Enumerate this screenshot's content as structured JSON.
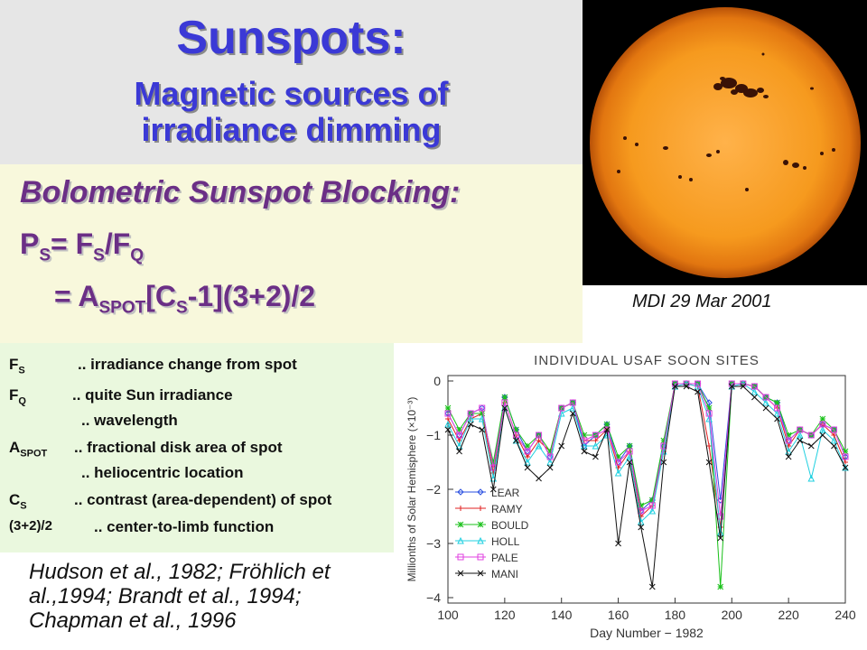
{
  "title": {
    "main": "Sunspots:",
    "sub_line1": "Magnetic sources of",
    "sub_line2": "irradiance dimming"
  },
  "equations": {
    "heading": "Bolometric Sunspot Blocking:",
    "eq1": {
      "p": "P",
      "p_sub": "S",
      "equals": "= ",
      "glyph": "",
      "f": "F",
      "f_sub": "S",
      "slash_f": "/F",
      "f2_sub": "Q"
    },
    "eq2": {
      "equals": "= ",
      "glyph": "",
      "a": "A",
      "a_sub": "SPOT",
      "bracket": "[C",
      "c_sub": "S",
      "middle": "-1](3",
      "glyph2": "",
      "end": "+2)/2"
    }
  },
  "sun_image": {
    "caption": "MDI   29 Mar 2001"
  },
  "definitions": [
    {
      "symbol": "F",
      "symbol_prefix": "",
      "symbol_sub": "S",
      "text": ".. irradiance change from spot"
    },
    {
      "symbol": "F",
      "symbol_prefix": "",
      "symbol_sub": "Q",
      "text": ".. quite Sun irradiance"
    },
    {
      "symbol": "",
      "symbol_prefix": "",
      "symbol_sub": "",
      "text": ".. wavelength"
    },
    {
      "symbol": "A",
      "symbol_prefix": "",
      "symbol_sub": "SPOT",
      "text": ".. fractional disk area of spot"
    },
    {
      "symbol": "",
      "symbol_prefix": "",
      "symbol_sub": "",
      "text": ".. heliocentric location"
    },
    {
      "symbol": "C",
      "symbol_prefix": "",
      "symbol_sub": "S",
      "text": ".. contrast (area-dependent) of spot"
    },
    {
      "symbol": "(3+2)/2",
      "symbol_prefix": "",
      "symbol_sub": "",
      "text": ".. center-to-limb function"
    }
  ],
  "references": "Hudson et al., 1982; Fröhlich et al.,1994; Brandt et al., 1994; Chapman et al., 1996",
  "chart_data": {
    "type": "line",
    "title": "INDIVIDUAL  USAF  SOON  SITES",
    "xlabel": "Day Number − 1982",
    "ylabel": "Millionths of Solar Hemisphere (×10⁻³)",
    "xlim": [
      100,
      240
    ],
    "ylim": [
      -4.1,
      0.1
    ],
    "xticks": [
      "100",
      "120",
      "140",
      "160",
      "180",
      "200",
      "220",
      "240"
    ],
    "yticks": [
      "0",
      "−1",
      "−2",
      "−3",
      "−4"
    ],
    "x": [
      100,
      104,
      108,
      112,
      116,
      120,
      124,
      128,
      132,
      136,
      140,
      144,
      148,
      152,
      156,
      160,
      164,
      168,
      172,
      176,
      180,
      184,
      188,
      192,
      196,
      200,
      204,
      208,
      212,
      216,
      220,
      224,
      228,
      232,
      236,
      240
    ],
    "series": [
      {
        "name": "LEAR",
        "color": "#2a4fe0",
        "marker": "diamond",
        "values": [
          -0.6,
          -1.0,
          -0.6,
          -0.5,
          -1.6,
          -0.3,
          -0.9,
          -1.3,
          -1.0,
          -1.4,
          -0.5,
          -0.4,
          -1.2,
          -1.0,
          -0.8,
          -1.5,
          -1.2,
          -2.4,
          -2.2,
          -1.2,
          -0.05,
          -0.05,
          -0.05,
          -0.4,
          -2.2,
          -0.05,
          -0.05,
          -0.1,
          -0.3,
          -0.4,
          -1.1,
          -0.9,
          -1.0,
          -0.8,
          -0.9,
          -1.4
        ]
      },
      {
        "name": "RAMY",
        "color": "#e02020",
        "marker": "plus",
        "values": [
          -0.7,
          -1.1,
          -0.7,
          -0.6,
          -1.7,
          -0.4,
          -1.0,
          -1.4,
          -1.1,
          -1.3,
          -0.5,
          -0.4,
          -1.1,
          -1.1,
          -0.9,
          -1.6,
          -1.3,
          -2.5,
          -2.3,
          -1.3,
          -0.05,
          -0.05,
          -0.1,
          -1.2,
          -2.7,
          -0.05,
          -0.05,
          -0.1,
          -0.3,
          -0.5,
          -1.2,
          -0.9,
          -1.0,
          -0.8,
          -1.0,
          -1.5
        ]
      },
      {
        "name": "BOULD",
        "color": "#18c018",
        "marker": "star",
        "values": [
          -0.5,
          -0.9,
          -0.6,
          -0.6,
          -1.5,
          -0.3,
          -0.9,
          -1.2,
          -1.0,
          -1.3,
          -0.5,
          -0.4,
          -1.0,
          -1.0,
          -0.8,
          -1.4,
          -1.2,
          -2.3,
          -2.2,
          -1.1,
          -0.05,
          -0.05,
          -0.05,
          -0.5,
          -3.8,
          -0.05,
          -0.05,
          -0.1,
          -0.3,
          -0.4,
          -1.0,
          -0.9,
          -1.0,
          -0.7,
          -0.9,
          -1.3
        ]
      },
      {
        "name": "HOLL",
        "color": "#20d0e0",
        "marker": "triangle",
        "values": [
          -0.8,
          -1.2,
          -0.7,
          -0.7,
          -1.8,
          -0.5,
          -1.1,
          -1.5,
          -1.2,
          -1.5,
          -0.6,
          -0.5,
          -1.2,
          -1.2,
          -1.0,
          -1.7,
          -1.4,
          -2.6,
          -2.4,
          -1.3,
          -0.1,
          -0.05,
          -0.1,
          -0.7,
          -2.8,
          -0.1,
          -0.05,
          -0.2,
          -0.4,
          -0.6,
          -1.3,
          -1.0,
          -1.8,
          -0.9,
          -1.1,
          -1.6
        ]
      },
      {
        "name": "PALE",
        "color": "#e040e0",
        "marker": "square",
        "values": [
          -0.6,
          -1.0,
          -0.6,
          -0.5,
          -1.6,
          -0.4,
          -1.0,
          -1.3,
          -1.0,
          -1.4,
          -0.5,
          -0.4,
          -1.1,
          -1.0,
          -0.9,
          -1.5,
          -1.3,
          -2.4,
          -2.3,
          -1.2,
          -0.05,
          -0.05,
          -0.05,
          -0.6,
          -2.5,
          -0.05,
          -0.05,
          -0.1,
          -0.3,
          -0.5,
          -1.1,
          -0.9,
          -1.0,
          -0.8,
          -0.9,
          -1.4
        ]
      },
      {
        "name": "MANI",
        "color": "#111111",
        "marker": "x",
        "values": [
          -0.9,
          -1.3,
          -0.8,
          -0.9,
          -2.0,
          -0.5,
          -1.1,
          -1.6,
          -1.8,
          -1.6,
          -1.2,
          -0.6,
          -1.3,
          -1.4,
          -0.9,
          -3.0,
          -1.5,
          -2.7,
          -3.8,
          -1.5,
          -0.1,
          -0.1,
          -0.2,
          -1.5,
          -2.9,
          -0.1,
          -0.1,
          -0.3,
          -0.5,
          -0.7,
          -1.4,
          -1.1,
          -1.2,
          -1.0,
          -1.2,
          -1.6
        ]
      }
    ],
    "legend_position": "lower-left",
    "grid": false
  }
}
